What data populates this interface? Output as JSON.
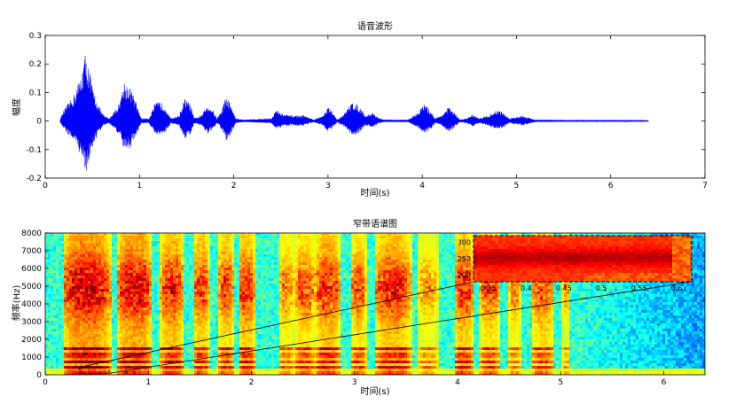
{
  "chart_data": [
    {
      "type": "line",
      "title": "语音波形",
      "xlabel": "时间(s)",
      "ylabel": "幅度",
      "xlim": [
        0,
        7
      ],
      "ylim": [
        -0.2,
        0.3
      ],
      "xticks": [
        "0",
        "1",
        "2",
        "3",
        "4",
        "5",
        "6",
        "7"
      ],
      "yticks": [
        "-0.2",
        "-0.1",
        "0",
        "0.1",
        "0.2",
        "0.3"
      ],
      "color": "#0000ff",
      "series": [
        {
          "envelope": [
            [
              0.16,
              0.01
            ],
            [
              0.2,
              0.04
            ],
            [
              0.3,
              0.09
            ],
            [
              0.38,
              0.16
            ],
            [
              0.42,
              0.24
            ],
            [
              0.46,
              0.2
            ],
            [
              0.5,
              0.12
            ],
            [
              0.56,
              0.06
            ],
            [
              0.62,
              0.02
            ],
            [
              0.68,
              0.01
            ],
            [
              0.78,
              0.06
            ],
            [
              0.84,
              0.14
            ],
            [
              0.9,
              0.12
            ],
            [
              0.96,
              0.07
            ],
            [
              1.02,
              0.01
            ],
            [
              1.1,
              0.01
            ],
            [
              1.16,
              0.06
            ],
            [
              1.22,
              0.07
            ],
            [
              1.28,
              0.05
            ],
            [
              1.33,
              0.01
            ],
            [
              1.42,
              0.02
            ],
            [
              1.48,
              0.08
            ],
            [
              1.54,
              0.06
            ],
            [
              1.58,
              0.01
            ],
            [
              1.66,
              0.02
            ],
            [
              1.72,
              0.06
            ],
            [
              1.78,
              0.04
            ],
            [
              1.82,
              0.01
            ],
            [
              1.86,
              0.03
            ],
            [
              1.92,
              0.09
            ],
            [
              1.97,
              0.06
            ],
            [
              2.02,
              0.01
            ],
            [
              2.1,
              0.005
            ],
            [
              2.4,
              0.01
            ],
            [
              2.45,
              0.04
            ],
            [
              2.52,
              0.025
            ],
            [
              2.6,
              0.02
            ],
            [
              2.75,
              0.02
            ],
            [
              2.85,
              0.005
            ],
            [
              2.95,
              0.02
            ],
            [
              3.0,
              0.05
            ],
            [
              3.05,
              0.03
            ],
            [
              3.1,
              0.005
            ],
            [
              3.18,
              0.03
            ],
            [
              3.26,
              0.07
            ],
            [
              3.34,
              0.05
            ],
            [
              3.4,
              0.02
            ],
            [
              3.48,
              0.03
            ],
            [
              3.54,
              0.01
            ],
            [
              3.6,
              0.005
            ],
            [
              3.85,
              0.005
            ],
            [
              3.95,
              0.03
            ],
            [
              4.02,
              0.06
            ],
            [
              4.08,
              0.04
            ],
            [
              4.14,
              0.01
            ],
            [
              4.2,
              0.02
            ],
            [
              4.28,
              0.05
            ],
            [
              4.34,
              0.03
            ],
            [
              4.4,
              0.005
            ],
            [
              4.48,
              0.01
            ],
            [
              4.54,
              0.025
            ],
            [
              4.6,
              0.01
            ],
            [
              4.7,
              0.02
            ],
            [
              4.8,
              0.04
            ],
            [
              4.86,
              0.03
            ],
            [
              4.92,
              0.01
            ],
            [
              5.0,
              0.015
            ],
            [
              5.06,
              0.02
            ],
            [
              5.2,
              0.005
            ],
            [
              5.6,
              0.004
            ],
            [
              6.2,
              0.004
            ],
            [
              6.4,
              0.003
            ]
          ]
        }
      ]
    },
    {
      "type": "heatmap",
      "title": "窄带语谱图",
      "xlabel": "时间(s)",
      "ylabel": "频率(Hz)",
      "xlim": [
        0,
        6.4
      ],
      "ylim": [
        0,
        8000
      ],
      "xticks": [
        "0",
        "1",
        "2",
        "3",
        "4",
        "5",
        "6"
      ],
      "yticks": [
        "0",
        "1000",
        "2000",
        "3000",
        "4000",
        "5000",
        "6000",
        "7000",
        "8000"
      ],
      "colormap": "jet",
      "voiced_segments": [
        [
          0.16,
          0.62,
          0.95
        ],
        [
          0.68,
          1.02,
          0.9
        ],
        [
          1.1,
          1.33,
          0.8
        ],
        [
          1.42,
          1.58,
          0.75
        ],
        [
          1.66,
          1.82,
          0.72
        ],
        [
          1.86,
          2.02,
          0.78
        ],
        [
          2.25,
          2.4,
          0.6
        ],
        [
          2.4,
          2.6,
          0.7
        ],
        [
          2.6,
          2.85,
          0.8
        ],
        [
          2.95,
          3.1,
          0.7
        ],
        [
          3.18,
          3.54,
          0.8
        ],
        [
          3.6,
          3.8,
          0.55
        ],
        [
          3.95,
          4.14,
          0.78
        ],
        [
          4.2,
          4.4,
          0.7
        ],
        [
          4.48,
          4.6,
          0.6
        ],
        [
          4.7,
          4.92,
          0.7
        ],
        [
          5.0,
          5.08,
          0.5
        ]
      ],
      "inset": {
        "xlim": [
          0.33,
          0.62
        ],
        "ylim": [
          180,
          320
        ],
        "xticks": [
          "0.35",
          "0.4",
          "0.45",
          "0.5",
          "0.55",
          "0.6"
        ],
        "yticks": [
          "200",
          "250",
          "300"
        ]
      }
    }
  ]
}
